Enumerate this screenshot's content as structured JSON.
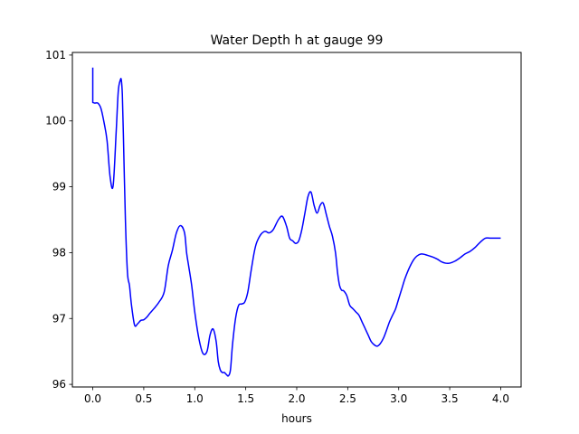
{
  "chart_data": {
    "type": "line",
    "title": "Water Depth h at gauge 99",
    "xlabel": "hours",
    "ylabel": "",
    "xlim": [
      -0.2,
      4.2
    ],
    "ylim": [
      95.96,
      101.04
    ],
    "xticks": [
      0.0,
      0.5,
      1.0,
      1.5,
      2.0,
      2.5,
      3.0,
      3.5,
      4.0
    ],
    "xtick_labels": [
      "0.0",
      "0.5",
      "1.0",
      "1.5",
      "2.0",
      "2.5",
      "3.0",
      "3.5",
      "4.0"
    ],
    "yticks": [
      96,
      97,
      98,
      99,
      100,
      101
    ],
    "ytick_labels": [
      "96",
      "97",
      "98",
      "99",
      "100",
      "101"
    ],
    "grid": false,
    "series": [
      {
        "color": "#0000ff",
        "x": [
          0.0,
          0.0,
          0.0,
          0.02,
          0.05,
          0.08,
          0.11,
          0.14,
          0.17,
          0.2,
          0.23,
          0.25,
          0.27,
          0.28,
          0.29,
          0.3,
          0.32,
          0.34,
          0.36,
          0.38,
          0.41,
          0.44,
          0.47,
          0.5,
          0.53,
          0.56,
          0.6,
          0.65,
          0.7,
          0.74,
          0.78,
          0.82,
          0.86,
          0.9,
          0.92,
          0.94,
          0.97,
          1.0,
          1.04,
          1.08,
          1.12,
          1.15,
          1.18,
          1.21,
          1.23,
          1.25,
          1.27,
          1.29,
          1.31,
          1.33,
          1.35,
          1.37,
          1.4,
          1.43,
          1.46,
          1.49,
          1.52,
          1.55,
          1.58,
          1.6,
          1.62,
          1.65,
          1.68,
          1.7,
          1.73,
          1.77,
          1.82,
          1.86,
          1.9,
          1.93,
          1.96,
          1.99,
          2.02,
          2.05,
          2.08,
          2.11,
          2.14,
          2.17,
          2.2,
          2.23,
          2.26,
          2.29,
          2.32,
          2.35,
          2.38,
          2.4,
          2.42,
          2.44,
          2.46,
          2.49,
          2.52,
          2.55,
          2.58,
          2.61,
          2.64,
          2.67,
          2.7,
          2.73,
          2.76,
          2.79,
          2.82,
          2.85,
          2.88,
          2.91,
          2.94,
          2.97,
          3.0,
          3.03,
          3.06,
          3.09,
          3.12,
          3.15,
          3.18,
          3.22,
          3.26,
          3.3,
          3.34,
          3.38,
          3.42,
          3.46,
          3.5,
          3.55,
          3.6,
          3.65,
          3.7,
          3.75,
          3.8,
          3.85,
          3.9,
          3.95,
          3.98,
          4.0
        ],
        "values": [
          100.81,
          100.8,
          100.28,
          100.27,
          100.27,
          100.19,
          99.98,
          99.7,
          99.15,
          99.02,
          99.85,
          100.45,
          100.62,
          100.62,
          100.4,
          99.8,
          98.5,
          97.7,
          97.5,
          97.2,
          96.9,
          96.92,
          96.97,
          96.98,
          97.02,
          97.08,
          97.15,
          97.25,
          97.4,
          97.8,
          98.03,
          98.3,
          98.41,
          98.3,
          98.0,
          97.8,
          97.5,
          97.1,
          96.7,
          96.47,
          96.5,
          96.75,
          96.84,
          96.65,
          96.35,
          96.22,
          96.18,
          96.18,
          96.15,
          96.13,
          96.22,
          96.6,
          97.0,
          97.2,
          97.22,
          97.25,
          97.4,
          97.7,
          97.98,
          98.12,
          98.2,
          98.28,
          98.32,
          98.32,
          98.3,
          98.35,
          98.5,
          98.55,
          98.4,
          98.22,
          98.18,
          98.14,
          98.18,
          98.35,
          98.6,
          98.85,
          98.92,
          98.72,
          98.6,
          98.72,
          98.75,
          98.58,
          98.4,
          98.25,
          98.0,
          97.7,
          97.5,
          97.43,
          97.42,
          97.35,
          97.2,
          97.15,
          97.1,
          97.05,
          96.95,
          96.85,
          96.75,
          96.65,
          96.6,
          96.58,
          96.62,
          96.7,
          96.82,
          96.95,
          97.05,
          97.15,
          97.3,
          97.45,
          97.6,
          97.72,
          97.82,
          97.9,
          97.95,
          97.98,
          97.97,
          97.95,
          97.93,
          97.9,
          97.86,
          97.84,
          97.84,
          97.87,
          97.92,
          97.98,
          98.02,
          98.08,
          98.16,
          98.22,
          98.22,
          98.22,
          98.22,
          98.22
        ]
      }
    ]
  }
}
